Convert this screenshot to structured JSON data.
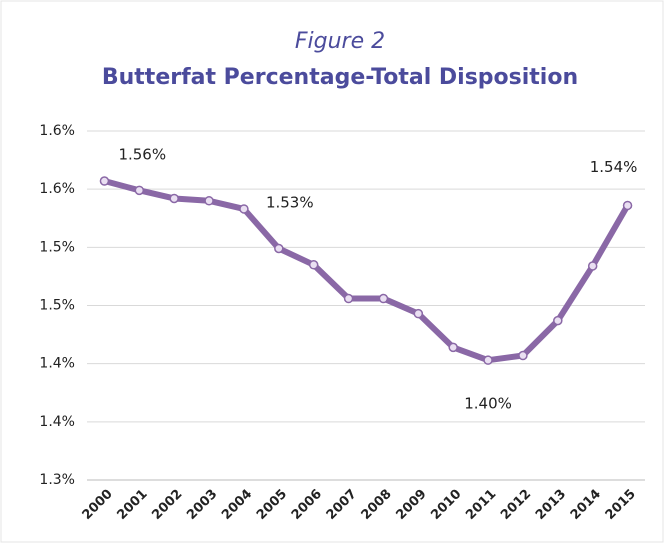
{
  "chart_data": {
    "type": "line",
    "title_top": "Figure 2",
    "title": "Butterfat Percentage-Total Disposition",
    "categories": [
      "2000",
      "2001",
      "2002",
      "2003",
      "2004",
      "2005",
      "2006",
      "2007",
      "2008",
      "2009",
      "2010",
      "2011",
      "2012",
      "2013",
      "2014",
      "2015"
    ],
    "series": [
      {
        "name": "Butterfat Percentage",
        "color": "#8a68a6",
        "values": [
          1.557,
          1.549,
          1.542,
          1.54,
          1.533,
          1.499,
          1.485,
          1.456,
          1.456,
          1.443,
          1.414,
          1.403,
          1.407,
          1.437,
          1.484,
          1.536
        ],
        "value_labels": [
          "1.56%",
          null,
          null,
          null,
          "1.53%",
          null,
          null,
          null,
          null,
          null,
          null,
          "1.40%",
          null,
          null,
          null,
          "1.54%"
        ]
      }
    ],
    "ylim": [
      1.3,
      1.6
    ],
    "yticks": [
      {
        "value": 1.3,
        "label": "1.3%"
      },
      {
        "value": 1.35,
        "label": "1.4%"
      },
      {
        "value": 1.4,
        "label": "1.4%"
      },
      {
        "value": 1.45,
        "label": "1.5%"
      },
      {
        "value": 1.5,
        "label": "1.5%"
      },
      {
        "value": 1.55,
        "label": "1.6%"
      },
      {
        "value": 1.6,
        "label": "1.6%"
      }
    ],
    "grid": true
  }
}
